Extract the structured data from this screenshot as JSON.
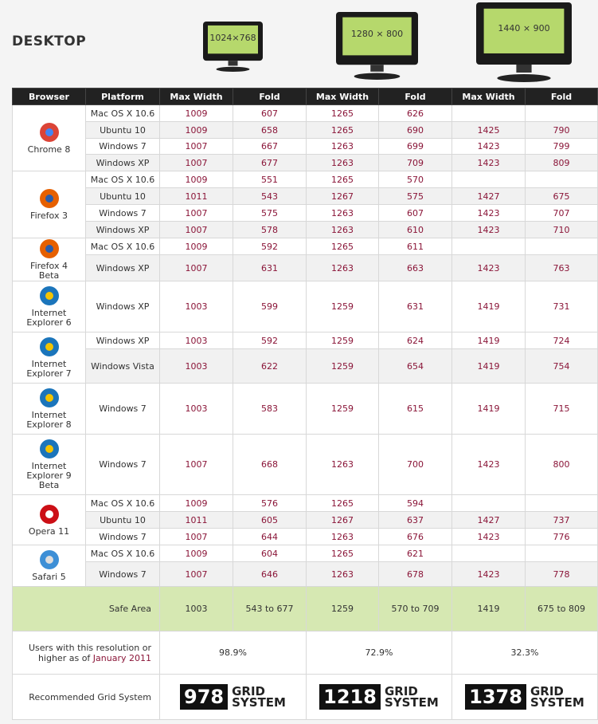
{
  "header": {
    "title": "DESKTOP",
    "resolutions": [
      "1024×768",
      "1280 × 800",
      "1440 × 900"
    ]
  },
  "table": {
    "columns": [
      "Browser",
      "Platform",
      "Max Width",
      "Fold",
      "Max Width",
      "Fold",
      "Max Width",
      "Fold"
    ],
    "groups": [
      {
        "browser": "Chrome 8",
        "rows": [
          [
            "Mac OS X 10.6",
            1009,
            607,
            1265,
            626,
            null,
            null
          ],
          [
            "Ubuntu 10",
            1009,
            658,
            1265,
            690,
            1425,
            790
          ],
          [
            "Windows 7",
            1007,
            667,
            1263,
            699,
            1423,
            799
          ],
          [
            "Windows XP",
            1007,
            677,
            1263,
            709,
            1423,
            809
          ]
        ]
      },
      {
        "browser": "Firefox 3",
        "rows": [
          [
            "Mac OS X 10.6",
            1009,
            551,
            1265,
            570,
            null,
            null
          ],
          [
            "Ubuntu 10",
            1011,
            543,
            1267,
            575,
            1427,
            675
          ],
          [
            "Windows 7",
            1007,
            575,
            1263,
            607,
            1423,
            707
          ],
          [
            "Windows XP",
            1007,
            578,
            1263,
            610,
            1423,
            710
          ]
        ]
      },
      {
        "browser": "Firefox 4 Beta",
        "rows": [
          [
            "Mac OS X 10.6",
            1009,
            592,
            1265,
            611,
            null,
            null
          ],
          [
            "Windows XP",
            1007,
            631,
            1263,
            663,
            1423,
            763
          ]
        ]
      },
      {
        "browser": "Internet Explorer 6",
        "rows": [
          [
            "Windows XP",
            1003,
            599,
            1259,
            631,
            1419,
            731
          ]
        ]
      },
      {
        "browser": "Internet Explorer 7",
        "rows": [
          [
            "Windows XP",
            1003,
            592,
            1259,
            624,
            1419,
            724
          ],
          [
            "Windows Vista",
            1003,
            622,
            1259,
            654,
            1419,
            754
          ]
        ]
      },
      {
        "browser": "Internet Explorer 8",
        "rows": [
          [
            "Windows 7",
            1003,
            583,
            1259,
            615,
            1419,
            715
          ]
        ]
      },
      {
        "browser": "Internet Explorer 9 Beta",
        "rows": [
          [
            "Windows 7",
            1007,
            668,
            1263,
            700,
            1423,
            800
          ]
        ]
      },
      {
        "browser": "Opera 11",
        "rows": [
          [
            "Mac OS X 10.6",
            1009,
            576,
            1265,
            594,
            null,
            null
          ],
          [
            "Ubuntu 10",
            1011,
            605,
            1267,
            637,
            1427,
            737
          ],
          [
            "Windows 7",
            1007,
            644,
            1263,
            676,
            1423,
            776
          ]
        ]
      },
      {
        "browser": "Safari 5",
        "rows": [
          [
            "Mac OS X 10.6",
            1009,
            604,
            1265,
            621,
            null,
            null
          ],
          [
            "Windows 7",
            1007,
            646,
            1263,
            678,
            1423,
            778
          ]
        ]
      }
    ],
    "safe_area": {
      "label": "Safe Area",
      "values": [
        1003,
        "543 to 677",
        1259,
        "570 to 709",
        1419,
        "675 to 809"
      ]
    },
    "users": {
      "label": "Users with this resolution or higher as of",
      "link": "January 2011",
      "values": [
        "98.9%",
        "72.9%",
        "32.3%"
      ]
    },
    "grid": {
      "label": "Recommended Grid System",
      "systems": [
        {
          "number": 978,
          "line1": "GRID",
          "line2": "SYSTEM"
        },
        {
          "number": 1218,
          "line1": "GRID",
          "line2": "SYSTEM"
        },
        {
          "number": 1378,
          "line1": "GRID",
          "line2": "SYSTEM"
        }
      ]
    }
  }
}
